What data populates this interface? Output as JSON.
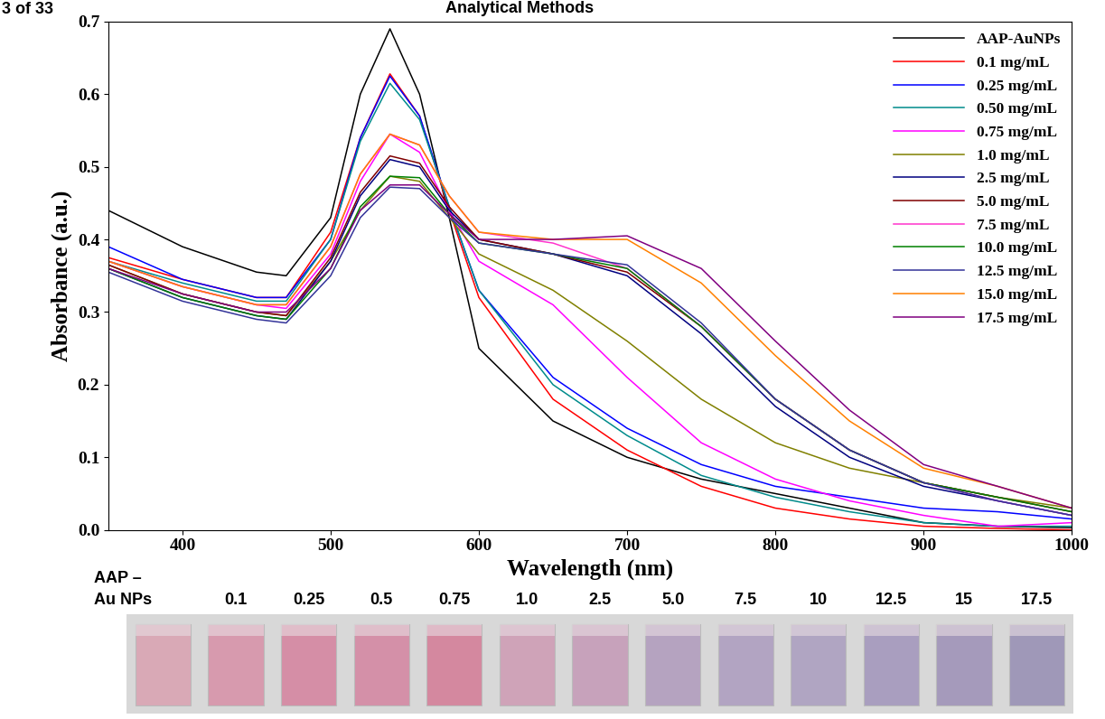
{
  "page": "3 of 33",
  "header": "Analytical Methods",
  "chart_data": {
    "type": "line",
    "x_label": "Wavelength (nm)",
    "y_label": "Absorbance (a.u.)",
    "x": [
      350,
      400,
      450,
      470,
      500,
      520,
      540,
      560,
      580,
      600,
      650,
      700,
      750,
      800,
      850,
      900,
      950,
      1000
    ],
    "xlim": [
      350,
      1000
    ],
    "xticks": [
      400,
      500,
      600,
      700,
      800,
      900,
      1000
    ],
    "ylim": [
      0,
      0.7
    ],
    "yticks": [
      {
        "value": 0,
        "label": "0.0"
      },
      0.1,
      0.2,
      0.3,
      0.4,
      0.5,
      0.6,
      0.7
    ],
    "legend": "upper right",
    "series": [
      {
        "name": "AAP-AuNPs",
        "color": "#000000",
        "values": [
          0.44,
          0.39,
          0.355,
          0.35,
          0.43,
          0.6,
          0.69,
          0.6,
          0.43,
          0.25,
          0.15,
          0.1,
          0.07,
          0.05,
          0.03,
          0.01,
          0.005,
          0.003
        ]
      },
      {
        "name": "0.1 mg/mL",
        "color": "#ff0000",
        "values": [
          0.375,
          0.345,
          0.32,
          0.32,
          0.41,
          0.54,
          0.628,
          0.57,
          0.44,
          0.32,
          0.18,
          0.11,
          0.06,
          0.03,
          0.015,
          0.005,
          0.002,
          0.0
        ]
      },
      {
        "name": "0.25 mg/mL",
        "color": "#0000ff",
        "values": [
          0.39,
          0.345,
          0.32,
          0.32,
          0.4,
          0.54,
          0.625,
          0.57,
          0.445,
          0.33,
          0.21,
          0.14,
          0.09,
          0.06,
          0.045,
          0.03,
          0.025,
          0.015
        ]
      },
      {
        "name": "0.50 mg/mL",
        "color": "#008b8b",
        "values": [
          0.37,
          0.34,
          0.315,
          0.315,
          0.4,
          0.535,
          0.615,
          0.565,
          0.445,
          0.33,
          0.2,
          0.13,
          0.075,
          0.045,
          0.025,
          0.01,
          0.005,
          0.005
        ]
      },
      {
        "name": "0.75 mg/mL",
        "color": "#ff00ff",
        "values": [
          0.37,
          0.335,
          0.31,
          0.305,
          0.38,
          0.48,
          0.545,
          0.52,
          0.44,
          0.37,
          0.31,
          0.21,
          0.12,
          0.07,
          0.04,
          0.02,
          0.005,
          0.01
        ]
      },
      {
        "name": "1.0 mg/mL",
        "color": "#808000",
        "values": [
          0.365,
          0.325,
          0.3,
          0.295,
          0.37,
          0.44,
          0.487,
          0.48,
          0.43,
          0.38,
          0.33,
          0.26,
          0.18,
          0.12,
          0.085,
          0.065,
          0.045,
          0.03
        ]
      },
      {
        "name": "2.5 mg/mL",
        "color": "#000080",
        "values": [
          0.36,
          0.32,
          0.295,
          0.29,
          0.37,
          0.46,
          0.51,
          0.5,
          0.44,
          0.4,
          0.38,
          0.35,
          0.27,
          0.17,
          0.1,
          0.06,
          0.04,
          0.02
        ]
      },
      {
        "name": "5.0 mg/mL",
        "color": "#800000",
        "values": [
          0.365,
          0.325,
          0.3,
          0.295,
          0.375,
          0.465,
          0.515,
          0.505,
          0.445,
          0.4,
          0.38,
          0.355,
          0.28,
          0.18,
          0.11,
          0.065,
          0.045,
          0.025
        ]
      },
      {
        "name": "7.5 mg/mL",
        "color": "#ff33cc",
        "values": [
          0.37,
          0.335,
          0.31,
          0.31,
          0.39,
          0.49,
          0.545,
          0.53,
          0.46,
          0.41,
          0.395,
          0.36,
          0.28,
          0.18,
          0.11,
          0.065,
          0.04,
          0.02
        ]
      },
      {
        "name": "10.0 mg/mL",
        "color": "#008000",
        "values": [
          0.36,
          0.32,
          0.295,
          0.29,
          0.36,
          0.445,
          0.487,
          0.485,
          0.435,
          0.395,
          0.38,
          0.36,
          0.28,
          0.18,
          0.11,
          0.065,
          0.045,
          0.025
        ]
      },
      {
        "name": "12.5 mg/mL",
        "color": "#333399",
        "values": [
          0.355,
          0.315,
          0.29,
          0.285,
          0.35,
          0.43,
          0.472,
          0.47,
          0.43,
          0.395,
          0.38,
          0.365,
          0.285,
          0.18,
          0.11,
          0.065,
          0.04,
          0.02
        ]
      },
      {
        "name": "15.0 mg/mL",
        "color": "#ff8000",
        "values": [
          0.37,
          0.335,
          0.31,
          0.31,
          0.39,
          0.49,
          0.545,
          0.53,
          0.46,
          0.41,
          0.4,
          0.4,
          0.34,
          0.24,
          0.15,
          0.085,
          0.06,
          0.03
        ]
      },
      {
        "name": "17.5 mg/mL",
        "color": "#800080",
        "values": [
          0.36,
          0.325,
          0.3,
          0.3,
          0.36,
          0.44,
          0.475,
          0.475,
          0.435,
          0.4,
          0.4,
          0.405,
          0.36,
          0.26,
          0.165,
          0.09,
          0.06,
          0.03
        ]
      }
    ]
  },
  "photo": {
    "labels": [
      "AAP –\nAu NPs",
      "0.1",
      "0.25",
      "0.5",
      "0.75",
      "1.0",
      "2.5",
      "5.0",
      "7.5",
      "10",
      "12.5",
      "15",
      "17.5"
    ],
    "colors": [
      "#d9a9b6",
      "#d79aae",
      "#d58ea6",
      "#d490a8",
      "#d4889f",
      "#cfa3b8",
      "#c7a2bb",
      "#b5a3c0",
      "#b2a4c2",
      "#b0a5c2",
      "#a99ebf",
      "#a59abb",
      "#9f98b8"
    ]
  }
}
